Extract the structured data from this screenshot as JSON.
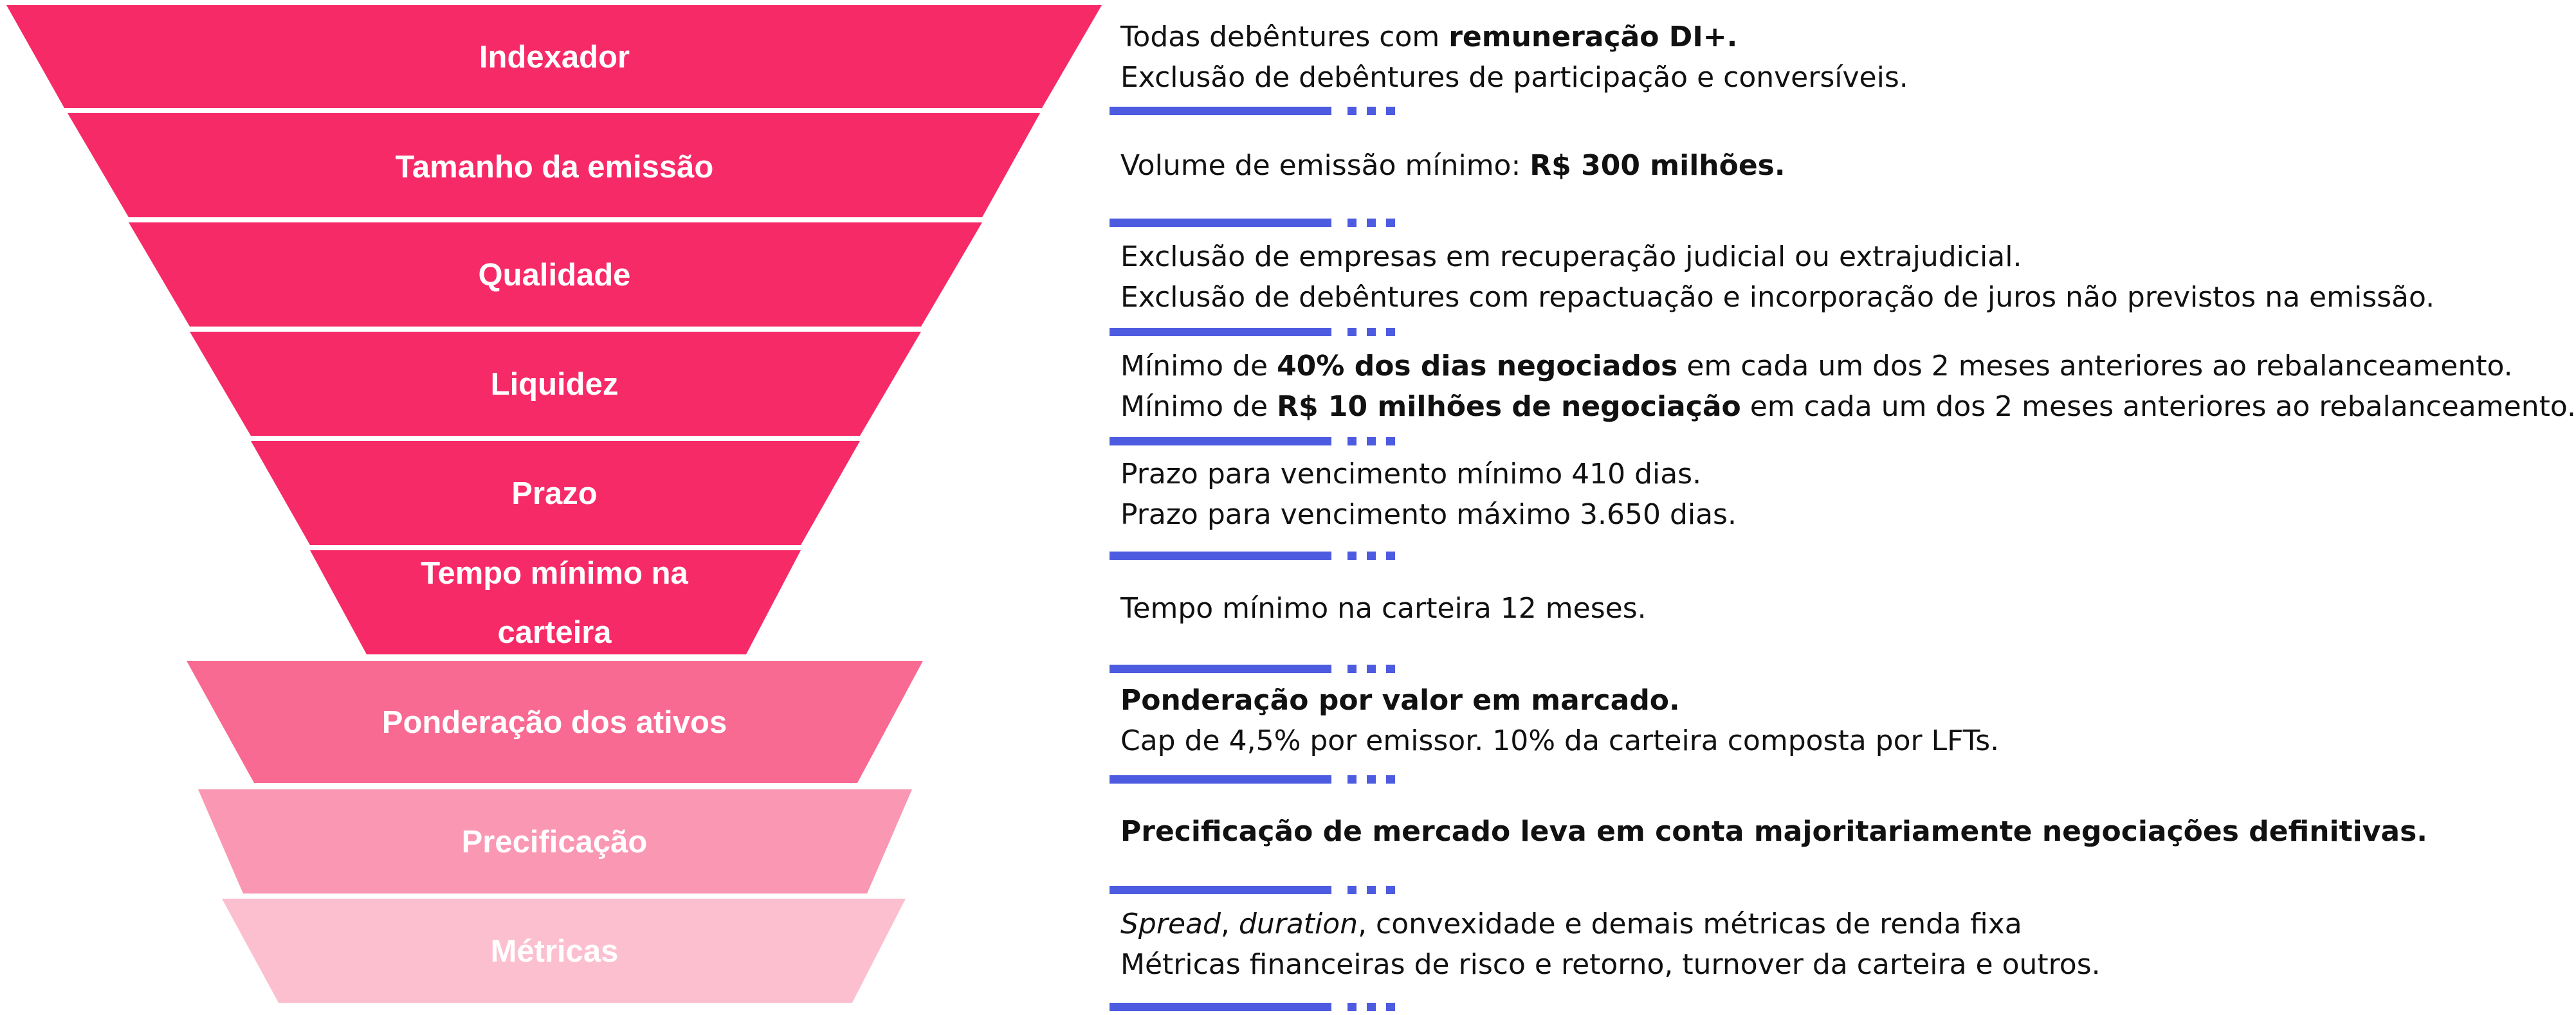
{
  "funnel": {
    "segments": [
      {
        "label_lines": [
          "Indexador"
        ],
        "color": "#f72a68"
      },
      {
        "label_lines": [
          "Tamanho da emissão"
        ],
        "color": "#f72a68"
      },
      {
        "label_lines": [
          "Qualidade"
        ],
        "color": "#f72a68"
      },
      {
        "label_lines": [
          "Liquidez"
        ],
        "color": "#f72a68"
      },
      {
        "label_lines": [
          "Prazo"
        ],
        "color": "#f72a68"
      },
      {
        "label_lines": [
          "Tempo mínimo na",
          "carteira"
        ],
        "color": "#f72a68"
      },
      {
        "label_lines": [
          "Ponderação dos ativos"
        ],
        "color": "#f96a92"
      },
      {
        "label_lines": [
          "Precificação"
        ],
        "color": "#fa97b3"
      },
      {
        "label_lines": [
          "Métricas"
        ],
        "color": "#fcbfd0"
      }
    ]
  },
  "descriptions": [
    {
      "lines": [
        [
          {
            "text": "Todas debêntures com "
          },
          {
            "text": "remuneração DI+.",
            "bold": true
          }
        ],
        [
          {
            "text": "Exclusão de debêntures de participação e conversíveis."
          }
        ]
      ]
    },
    {
      "lines": [
        [
          {
            "text": "Volume de emissão mínimo: "
          },
          {
            "text": "R$ 300 milhões.",
            "bold": true
          }
        ]
      ]
    },
    {
      "lines": [
        [
          {
            "text": "Exclusão de empresas em recuperação judicial ou extrajudicial."
          }
        ],
        [
          {
            "text": "Exclusão de debêntures com repactuação e incorporação de juros não previstos na emissão."
          }
        ]
      ]
    },
    {
      "lines": [
        [
          {
            "text": "Mínimo de "
          },
          {
            "text": "40% dos dias negociados",
            "bold": true
          },
          {
            "text": " em cada um dos 2 meses anteriores ao rebalanceamento."
          }
        ],
        [
          {
            "text": "Mínimo de "
          },
          {
            "text": "R$ 10 milhões de negociação",
            "bold": true
          },
          {
            "text": " em cada um dos 2 meses anteriores ao rebalanceamento."
          }
        ]
      ]
    },
    {
      "lines": [
        [
          {
            "text": "Prazo para vencimento mínimo 410 dias."
          }
        ],
        [
          {
            "text": "Prazo para vencimento máximo 3.650 dias."
          }
        ]
      ]
    },
    {
      "lines": [
        [
          {
            "text": "Tempo mínimo na carteira 12 meses."
          }
        ]
      ]
    },
    {
      "lines": [
        [
          {
            "text": "Ponderação por valor em marcado.",
            "bold": true
          }
        ],
        [
          {
            "text": "Cap de 4,5% por emissor. 10% da carteira composta por LFTs."
          }
        ]
      ]
    },
    {
      "lines": [
        [
          {
            "text": "Precificação de mercado leva em conta majoritariamente negociações definitivas.",
            "bold": true
          }
        ]
      ]
    },
    {
      "lines": [
        [
          {
            "text": "Spread",
            "italic": true
          },
          {
            "text": ", "
          },
          {
            "text": "duration",
            "italic": true
          },
          {
            "text": ", convexidade e demais métricas de renda fixa"
          }
        ],
        [
          {
            "text": "Métricas financeiras de risco e retorno, turnover da carteira e outros."
          }
        ]
      ]
    }
  ],
  "separator_color": "#4d5be0"
}
